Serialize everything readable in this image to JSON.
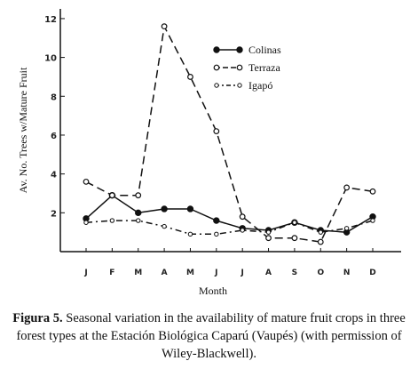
{
  "chart_data": {
    "type": "line",
    "xlabel": "Month",
    "ylabel": "Av. No. Trees w/Mature Fruit",
    "categories": [
      "J",
      "F",
      "M",
      "A",
      "M",
      "J",
      "J",
      "A",
      "S",
      "O",
      "N",
      "D"
    ],
    "yticks": [
      "2",
      "4",
      "6",
      "8",
      "10",
      "12"
    ],
    "ylim": [
      0,
      12.5
    ],
    "grid": false,
    "legend_position": "top-right",
    "series": [
      {
        "name": "Colinas",
        "style": "solid",
        "marker": "filled-circle",
        "values": [
          1.7,
          2.9,
          2.0,
          2.2,
          2.2,
          1.6,
          1.2,
          1.1,
          1.5,
          1.1,
          1.0,
          1.8
        ]
      },
      {
        "name": "Terraza",
        "style": "dashed",
        "marker": "open-circle",
        "values": [
          3.6,
          2.9,
          2.9,
          11.6,
          9.0,
          6.2,
          1.8,
          0.7,
          0.7,
          0.5,
          3.3,
          3.1
        ]
      },
      {
        "name": "Igapó",
        "style": "dash-dot",
        "marker": "small-circle",
        "values": [
          1.5,
          1.6,
          1.6,
          1.3,
          0.9,
          0.9,
          1.1,
          1.0,
          1.5,
          1.0,
          1.2,
          1.6
        ]
      }
    ]
  },
  "caption": {
    "label": "Figura 5.",
    "text": " Seasonal variation in the availability of mature fruit crops in three forest types at the Estación Biológica Caparú (Vaupés) (with permission of Wiley-Blackwell)."
  }
}
